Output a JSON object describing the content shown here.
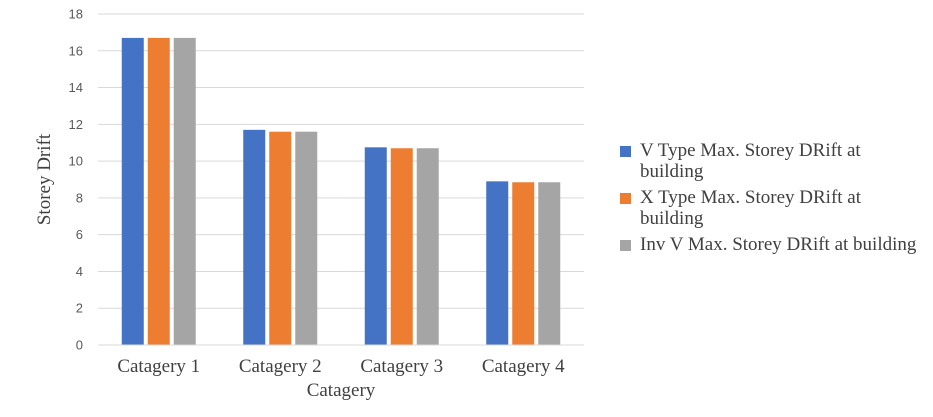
{
  "chart_data": {
    "type": "bar",
    "categories": [
      "Catagery 1",
      "Catagery 2",
      "Catagery 3",
      "Catagery 4"
    ],
    "series": [
      {
        "name": "V Type Max.  Storey DRift at building",
        "color": "#4472C4",
        "values": [
          16.7,
          11.7,
          10.75,
          8.9
        ]
      },
      {
        "name": "X Type Max.  Storey DRift at building",
        "color": "#ED7D31",
        "values": [
          16.7,
          11.6,
          10.7,
          8.85
        ]
      },
      {
        "name": "Inv V Max.  Storey DRift at building",
        "color": "#A5A5A5",
        "values": [
          16.7,
          11.6,
          10.7,
          8.85
        ]
      }
    ],
    "xlabel": "Catagery",
    "ylabel": "Storey Drift",
    "ylim": [
      0,
      18
    ],
    "yticks": [
      "0",
      "2",
      "4",
      "6",
      "8",
      "10",
      "12",
      "14",
      "16",
      "18"
    ],
    "grid": true,
    "legend_position": "right"
  }
}
